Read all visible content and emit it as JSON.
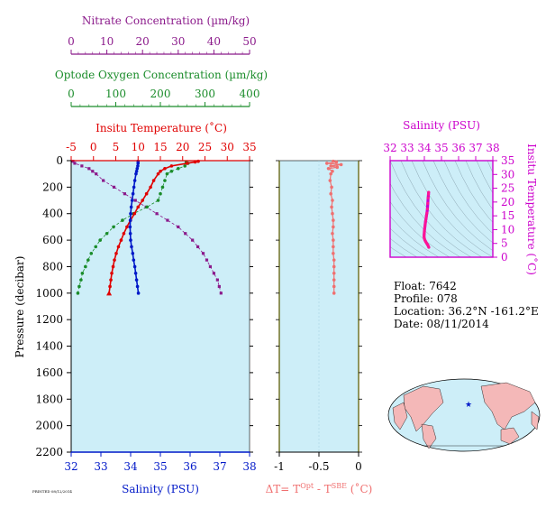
{
  "colors": {
    "nitrate": "#8b1a8b",
    "oxygen": "#1a8c2a",
    "temperature": "#e00000",
    "salinity": "#0018c8",
    "delta_t": "#f07070",
    "ts_axes": "#cc00cc",
    "panel_bg": "#cdeef8",
    "axis_olive": "#6b6b1a"
  },
  "info": {
    "float": "Float:  7642",
    "profile": "Profile:  078",
    "location": "Location:  36.2°N  -161.2°E",
    "date": "Date:  08/11/2014",
    "tiny_stamp": "PRINTED 08/12/2014"
  },
  "chart_data": [
    {
      "type": "line",
      "title": "",
      "ylabel": "Pressure (decibar)",
      "ylim": [
        2200,
        0
      ],
      "yticks": [
        0,
        200,
        400,
        600,
        800,
        1000,
        1200,
        1400,
        1600,
        1800,
        2000,
        2200
      ],
      "grid": false,
      "axes": {
        "nitrate": {
          "label": "Nitrate Concentration (µm/kg)",
          "range": [
            0,
            50
          ],
          "ticks": [
            0,
            10,
            20,
            30,
            40,
            50
          ]
        },
        "oxygen": {
          "label": "Optode Oxygen Concentration (µm/kg)",
          "range": [
            0,
            400
          ],
          "ticks": [
            0,
            100,
            200,
            300,
            400
          ]
        },
        "temperature": {
          "label": "Insitu Temperature (˚C)",
          "range": [
            -5,
            35
          ],
          "ticks": [
            -5,
            0,
            5,
            10,
            15,
            20,
            25,
            30,
            35
          ]
        },
        "salinity": {
          "label": "Salinity (PSU)",
          "range": [
            32,
            38
          ],
          "ticks": [
            32,
            33,
            34,
            35,
            36,
            37,
            38
          ]
        }
      },
      "series": [
        {
          "key": "nitrate",
          "marker": "square",
          "pressure": [
            5,
            20,
            40,
            60,
            80,
            100,
            150,
            200,
            250,
            300,
            350,
            400,
            450,
            500,
            550,
            600,
            650,
            700,
            750,
            800,
            850,
            900,
            950,
            1000
          ],
          "values": [
            0.5,
            1,
            3,
            5,
            6,
            7,
            9,
            12,
            15,
            18,
            21,
            24,
            27,
            30,
            32,
            34,
            35.5,
            37,
            38,
            39,
            40,
            41,
            41.5,
            42
          ]
        },
        {
          "key": "oxygen",
          "marker": "circle",
          "pressure": [
            10,
            20,
            40,
            60,
            80,
            100,
            150,
            200,
            250,
            300,
            350,
            400,
            450,
            500,
            550,
            600,
            650,
            700,
            750,
            800,
            850,
            900,
            950,
            1000
          ],
          "values": [
            258,
            262,
            255,
            240,
            225,
            215,
            210,
            205,
            200,
            195,
            170,
            140,
            115,
            95,
            80,
            65,
            55,
            45,
            38,
            32,
            25,
            22,
            18,
            15
          ]
        },
        {
          "key": "temperature",
          "marker": "triangle",
          "pressure": [
            5,
            10,
            20,
            40,
            60,
            80,
            100,
            150,
            200,
            250,
            300,
            350,
            400,
            450,
            500,
            550,
            600,
            650,
            700,
            750,
            800,
            850,
            900,
            950,
            1000
          ],
          "values": [
            23.5,
            22.8,
            21,
            17.5,
            16,
            15,
            14.5,
            13.5,
            12.8,
            11.9,
            11,
            10,
            9.2,
            8.3,
            7.5,
            6.8,
            6.2,
            5.6,
            5.1,
            4.7,
            4.4,
            4.1,
            3.9,
            3.7,
            3.5
          ]
        },
        {
          "key": "salinity",
          "marker": "circle",
          "pressure": [
            5,
            20,
            40,
            60,
            80,
            100,
            150,
            200,
            250,
            300,
            350,
            400,
            450,
            500,
            550,
            600,
            650,
            700,
            750,
            800,
            850,
            900,
            950,
            1000
          ],
          "values": [
            34.25,
            34.25,
            34.24,
            34.22,
            34.2,
            34.18,
            34.14,
            34.11,
            34.08,
            34.05,
            34.02,
            34,
            33.99,
            33.98,
            33.99,
            34,
            34.03,
            34.07,
            34.1,
            34.14,
            34.17,
            34.2,
            34.23,
            34.26
          ]
        }
      ]
    },
    {
      "type": "line",
      "xlabel": "ΔT= T",
      "xlabel_sup1": "Opt",
      "xlabel_mid": " - T",
      "xlabel_sup2": "SBE",
      "xlabel_tail": " (˚C)",
      "xlim": [
        -1,
        0
      ],
      "xticks": [
        -1,
        -0.5,
        0
      ],
      "xtick_labels": [
        "-1",
        "-0.5",
        "0"
      ],
      "ylim": [
        2200,
        0
      ],
      "series": [
        {
          "name": "",
          "marker": "circle",
          "pressure": [
            5,
            10,
            20,
            30,
            40,
            50,
            60,
            80,
            100,
            150,
            200,
            250,
            300,
            350,
            400,
            450,
            500,
            550,
            600,
            650,
            700,
            750,
            800,
            850,
            900,
            950,
            1000
          ],
          "values": [
            -0.32,
            -0.28,
            -0.4,
            -0.22,
            -0.35,
            -0.27,
            -0.38,
            -0.33,
            -0.35,
            -0.36,
            -0.34,
            -0.35,
            -0.33,
            -0.34,
            -0.33,
            -0.32,
            -0.32,
            -0.33,
            -0.32,
            -0.32,
            -0.32,
            -0.31,
            -0.31,
            -0.31,
            -0.31,
            -0.31,
            -0.31
          ]
        }
      ]
    },
    {
      "type": "line",
      "title": "Salinity (PSU)",
      "xlabel": "Salinity (PSU)",
      "ylabel": "Insitu Temperature (˚C)",
      "xlim": [
        32,
        38
      ],
      "ylim": [
        0,
        35
      ],
      "xticks": [
        32,
        33,
        34,
        35,
        36,
        37,
        38
      ],
      "yticks": [
        0,
        5,
        10,
        15,
        20,
        25,
        30,
        35
      ],
      "series": [
        {
          "name": "",
          "marker": "circle",
          "x": [
            34.25,
            34.24,
            34.22,
            34.2,
            34.18,
            34.15,
            34.12,
            34.1,
            34.07,
            34.05,
            34.03,
            34.01,
            34,
            33.99,
            33.98,
            34,
            34.03,
            34.08,
            34.14,
            34.2,
            34.26
          ],
          "y": [
            23.5,
            22.8,
            21.5,
            19.5,
            17.5,
            16,
            15,
            14,
            13,
            12,
            11,
            10,
            9.2,
            8.3,
            7.5,
            6.8,
            6.2,
            5.6,
            5,
            4.4,
            3.6
          ]
        }
      ]
    }
  ]
}
